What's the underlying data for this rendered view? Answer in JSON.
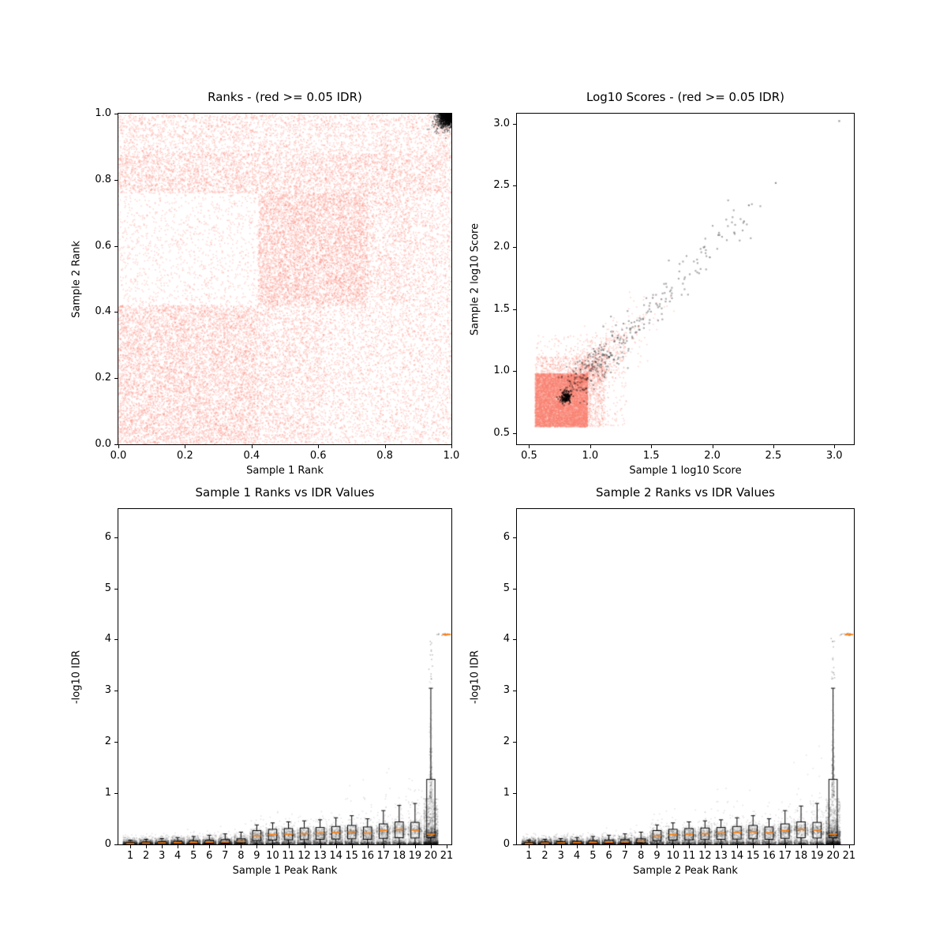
{
  "figure": {
    "background": "#ffffff"
  },
  "chart_data": [
    {
      "type": "scatter",
      "title": "Ranks - (red >= 0.05 IDR)",
      "xlabel": "Sample 1 Rank",
      "ylabel": "Sample 2 Rank",
      "xlim": [
        0,
        1
      ],
      "ylim": [
        0,
        1
      ],
      "xticks": {
        "values": [
          0,
          0.2,
          0.4,
          0.6,
          0.8,
          1.0
        ],
        "labels": [
          "0.0",
          "0.2",
          "0.4",
          "0.6",
          "0.8",
          "1.0"
        ]
      },
      "yticks": {
        "values": [
          0,
          0.2,
          0.4,
          0.6,
          0.8,
          1.0
        ],
        "labels": [
          "0.0",
          "0.2",
          "0.4",
          "0.6",
          "0.8",
          "1.0"
        ]
      },
      "colors": {
        "nonsignificant": "#FA8072",
        "significant": "#000000"
      },
      "blocks": [
        {
          "x0": 0.0,
          "x1": 1.0,
          "y0": 0.0,
          "y1": 1.0,
          "n": 1200
        },
        {
          "x0": 0.0,
          "x1": 0.42,
          "y0": 0.0,
          "y1": 0.42,
          "n": 7500
        },
        {
          "x0": 0.42,
          "x1": 0.62,
          "y0": 0.0,
          "y1": 0.42,
          "n": 2200
        },
        {
          "x0": 0.62,
          "x1": 0.88,
          "y0": 0.0,
          "y1": 0.42,
          "n": 1700
        },
        {
          "x0": 0.88,
          "x1": 1.0,
          "y0": 0.0,
          "y1": 0.42,
          "n": 800
        },
        {
          "x0": 0.0,
          "x1": 0.42,
          "y0": 0.42,
          "y1": 0.76,
          "n": 900
        },
        {
          "x0": 0.42,
          "x1": 0.75,
          "y0": 0.42,
          "y1": 0.76,
          "n": 6200
        },
        {
          "x0": 0.75,
          "x1": 0.88,
          "y0": 0.42,
          "y1": 0.76,
          "n": 1100
        },
        {
          "x0": 0.88,
          "x1": 1.0,
          "y0": 0.42,
          "y1": 0.76,
          "n": 700
        },
        {
          "x0": 0.0,
          "x1": 0.88,
          "y0": 0.76,
          "y1": 0.88,
          "n": 3800
        },
        {
          "x0": 0.88,
          "x1": 1.0,
          "y0": 0.76,
          "y1": 0.88,
          "n": 450
        },
        {
          "x0": 0.0,
          "x1": 0.42,
          "y0": 0.88,
          "y1": 1.0,
          "n": 1100
        },
        {
          "x0": 0.42,
          "x1": 0.75,
          "y0": 0.88,
          "y1": 1.0,
          "n": 800
        },
        {
          "x0": 0.75,
          "x1": 1.0,
          "y0": 0.88,
          "y1": 1.0,
          "n": 650
        }
      ],
      "black_cluster": {
        "corner_x": 1.0,
        "corner_y": 1.0,
        "sd": 0.02,
        "n": 1100
      }
    },
    {
      "type": "scatter",
      "title": "Log10 Scores - (red >= 0.05 IDR)",
      "xlabel": "Sample 1 log10 Score",
      "ylabel": "Sample 2 log10 Score",
      "xlim": [
        0.4,
        3.16
      ],
      "ylim": [
        0.41,
        3.08
      ],
      "xticks": {
        "values": [
          0.5,
          1.0,
          1.5,
          2.0,
          2.5,
          3.0
        ],
        "labels": [
          "0.5",
          "1.0",
          "1.5",
          "2.0",
          "2.5",
          "3.0"
        ]
      },
      "yticks": {
        "values": [
          0.5,
          1.0,
          1.5,
          2.0,
          2.5,
          3.0
        ],
        "labels": [
          "0.5",
          "1.0",
          "1.5",
          "2.0",
          "2.5",
          "3.0"
        ]
      },
      "colors": {
        "nonsignificant": "#FA8072",
        "significant": "#000000"
      },
      "blocks": [
        {
          "x0": 0.55,
          "x1": 0.98,
          "y0": 0.55,
          "y1": 0.98,
          "n": 9500
        },
        {
          "x0": 0.55,
          "x1": 1.12,
          "y0": 0.55,
          "y1": 1.12,
          "n": 1400
        },
        {
          "x0": 0.55,
          "x1": 1.3,
          "y0": 0.55,
          "y1": 1.3,
          "n": 450
        }
      ],
      "salmon_diag": {
        "t0": 0.9,
        "scale": 0.18,
        "sd": 0.09,
        "tmax": 1.6,
        "n": 700
      },
      "gray_diag": {
        "t0": 0.82,
        "scale": 0.5,
        "sdx": 0.05,
        "sdy": 0.07,
        "tmax": 2.35,
        "n": 360
      },
      "black_cluster": {
        "cx": 0.8,
        "cy": 0.79,
        "sd": 0.022,
        "n": 170
      },
      "outliers": [
        [
          3.04,
          3.02
        ],
        [
          2.52,
          2.52
        ],
        [
          2.3,
          2.34
        ],
        [
          2.26,
          2.21
        ],
        [
          2.18,
          2.12
        ],
        [
          2.05,
          2.1
        ],
        [
          1.98,
          1.92
        ],
        [
          1.93,
          2.0
        ]
      ]
    },
    {
      "type": "box-scatter",
      "title": "Sample 1 Ranks vs IDR Values",
      "xlabel": "Sample 1 Peak Rank",
      "ylabel": "-log10 IDR",
      "xlim": [
        0.25,
        21.3
      ],
      "ylim": [
        0,
        6.55
      ],
      "xticks": {
        "values": [
          1,
          2,
          3,
          4,
          5,
          6,
          7,
          8,
          9,
          10,
          11,
          12,
          13,
          14,
          15,
          16,
          17,
          18,
          19,
          20,
          21
        ],
        "labels": [
          "1",
          "2",
          "3",
          "4",
          "5",
          "6",
          "7",
          "8",
          "9",
          "10",
          "11",
          "12",
          "13",
          "14",
          "15",
          "16",
          "17",
          "18",
          "19",
          "20",
          "21"
        ]
      },
      "yticks": {
        "values": [
          0,
          1,
          2,
          3,
          4,
          5,
          6
        ],
        "labels": [
          "0",
          "1",
          "2",
          "3",
          "4",
          "5",
          "6"
        ]
      },
      "colors": {
        "points": "#000000",
        "box": "#000000",
        "median": "#ff7f0e"
      },
      "ranks": [
        {
          "rank": 1,
          "median": 0.02,
          "q1": 0.009,
          "q3": 0.038,
          "whisker_low": 0.001,
          "whisker_high": 0.085,
          "tail_scale": 0.03,
          "n": 640
        },
        {
          "rank": 2,
          "median": 0.024,
          "q1": 0.011,
          "q3": 0.045,
          "whisker_low": 0.001,
          "whisker_high": 0.1,
          "tail_scale": 0.034,
          "n": 640
        },
        {
          "rank": 3,
          "median": 0.028,
          "q1": 0.013,
          "q3": 0.053,
          "whisker_low": 0.001,
          "whisker_high": 0.115,
          "tail_scale": 0.038,
          "n": 640
        },
        {
          "rank": 4,
          "median": 0.033,
          "q1": 0.015,
          "q3": 0.062,
          "whisker_low": 0.001,
          "whisker_high": 0.135,
          "tail_scale": 0.043,
          "n": 640
        },
        {
          "rank": 5,
          "median": 0.038,
          "q1": 0.017,
          "q3": 0.072,
          "whisker_low": 0.001,
          "whisker_high": 0.155,
          "tail_scale": 0.048,
          "n": 640
        },
        {
          "rank": 6,
          "median": 0.044,
          "q1": 0.02,
          "q3": 0.083,
          "whisker_low": 0.001,
          "whisker_high": 0.18,
          "tail_scale": 0.054,
          "n": 640
        },
        {
          "rank": 7,
          "median": 0.05,
          "q1": 0.023,
          "q3": 0.095,
          "whisker_low": 0.001,
          "whisker_high": 0.205,
          "tail_scale": 0.06,
          "n": 640
        },
        {
          "rank": 8,
          "median": 0.058,
          "q1": 0.026,
          "q3": 0.11,
          "whisker_low": 0.001,
          "whisker_high": 0.24,
          "tail_scale": 0.068,
          "n": 640
        },
        {
          "rank": 9,
          "median": 0.17,
          "q1": 0.075,
          "q3": 0.27,
          "whisker_low": 0.002,
          "whisker_high": 0.38,
          "tail_scale": 0.1,
          "n": 640
        },
        {
          "rank": 10,
          "median": 0.19,
          "q1": 0.085,
          "q3": 0.295,
          "whisker_low": 0.002,
          "whisker_high": 0.42,
          "tail_scale": 0.115,
          "n": 640
        },
        {
          "rank": 11,
          "median": 0.2,
          "q1": 0.09,
          "q3": 0.31,
          "whisker_low": 0.002,
          "whisker_high": 0.44,
          "tail_scale": 0.125,
          "n": 640
        },
        {
          "rank": 12,
          "median": 0.21,
          "q1": 0.095,
          "q3": 0.32,
          "whisker_low": 0.002,
          "whisker_high": 0.46,
          "tail_scale": 0.135,
          "n": 640
        },
        {
          "rank": 13,
          "median": 0.22,
          "q1": 0.1,
          "q3": 0.33,
          "whisker_low": 0.002,
          "whisker_high": 0.48,
          "tail_scale": 0.145,
          "n": 640
        },
        {
          "rank": 14,
          "median": 0.23,
          "q1": 0.105,
          "q3": 0.35,
          "whisker_low": 0.002,
          "whisker_high": 0.52,
          "tail_scale": 0.155,
          "n": 640
        },
        {
          "rank": 15,
          "median": 0.245,
          "q1": 0.11,
          "q3": 0.37,
          "whisker_low": 0.002,
          "whisker_high": 0.56,
          "tail_scale": 0.165,
          "n": 640
        },
        {
          "rank": 16,
          "median": 0.22,
          "q1": 0.1,
          "q3": 0.34,
          "whisker_low": 0.002,
          "whisker_high": 0.5,
          "tail_scale": 0.175,
          "n": 640
        },
        {
          "rank": 17,
          "median": 0.27,
          "q1": 0.12,
          "q3": 0.4,
          "whisker_low": 0.002,
          "whisker_high": 0.66,
          "tail_scale": 0.2,
          "n": 640
        },
        {
          "rank": 18,
          "median": 0.29,
          "q1": 0.13,
          "q3": 0.44,
          "whisker_low": 0.002,
          "whisker_high": 0.76,
          "tail_scale": 0.24,
          "n": 640
        },
        {
          "rank": 19,
          "median": 0.28,
          "q1": 0.125,
          "q3": 0.43,
          "whisker_low": 0.002,
          "whisker_high": 0.8,
          "tail_scale": 0.3,
          "n": 640
        },
        {
          "rank": 20,
          "median": 0.2,
          "q1": 0.13,
          "q3": 1.27,
          "whisker_low": 0.002,
          "whisker_high": 3.05,
          "tail_scale": 0.52,
          "n": 2200
        }
      ],
      "capped_bin": {
        "rank": 21,
        "value": 4.1
      },
      "capped_points": {
        "x": 20.9,
        "sdx": 0.22,
        "y": 4.1,
        "sdy": 0.012,
        "n": 22
      },
      "spike": {
        "x": 20.0,
        "sdx": 0.05,
        "y0": 3.2,
        "y1": 4.05,
        "n": 14
      }
    },
    {
      "type": "box-scatter",
      "title": "Sample 2 Ranks vs IDR Values",
      "xlabel": "Sample 2 Peak Rank",
      "ylabel": "-log10 IDR",
      "xlim": [
        0.25,
        21.3
      ],
      "ylim": [
        0,
        6.55
      ],
      "xticks": {
        "values": [
          1,
          2,
          3,
          4,
          5,
          6,
          7,
          8,
          9,
          10,
          11,
          12,
          13,
          14,
          15,
          16,
          17,
          18,
          19,
          20,
          21
        ],
        "labels": [
          "1",
          "2",
          "3",
          "4",
          "5",
          "6",
          "7",
          "8",
          "9",
          "10",
          "11",
          "12",
          "13",
          "14",
          "15",
          "16",
          "17",
          "18",
          "19",
          "20",
          "21"
        ]
      },
      "yticks": {
        "values": [
          0,
          1,
          2,
          3,
          4,
          5,
          6
        ],
        "labels": [
          "0",
          "1",
          "2",
          "3",
          "4",
          "5",
          "6"
        ]
      },
      "colors": {
        "points": "#000000",
        "box": "#000000",
        "median": "#ff7f0e"
      },
      "ranks": [
        {
          "rank": 1,
          "median": 0.02,
          "q1": 0.009,
          "q3": 0.038,
          "whisker_low": 0.001,
          "whisker_high": 0.085,
          "tail_scale": 0.03,
          "n": 640
        },
        {
          "rank": 2,
          "median": 0.024,
          "q1": 0.011,
          "q3": 0.045,
          "whisker_low": 0.001,
          "whisker_high": 0.1,
          "tail_scale": 0.034,
          "n": 640
        },
        {
          "rank": 3,
          "median": 0.028,
          "q1": 0.013,
          "q3": 0.053,
          "whisker_low": 0.001,
          "whisker_high": 0.115,
          "tail_scale": 0.038,
          "n": 640
        },
        {
          "rank": 4,
          "median": 0.033,
          "q1": 0.015,
          "q3": 0.062,
          "whisker_low": 0.001,
          "whisker_high": 0.135,
          "tail_scale": 0.043,
          "n": 640
        },
        {
          "rank": 5,
          "median": 0.038,
          "q1": 0.017,
          "q3": 0.072,
          "whisker_low": 0.001,
          "whisker_high": 0.155,
          "tail_scale": 0.048,
          "n": 640
        },
        {
          "rank": 6,
          "median": 0.044,
          "q1": 0.02,
          "q3": 0.083,
          "whisker_low": 0.001,
          "whisker_high": 0.18,
          "tail_scale": 0.054,
          "n": 640
        },
        {
          "rank": 7,
          "median": 0.05,
          "q1": 0.023,
          "q3": 0.095,
          "whisker_low": 0.001,
          "whisker_high": 0.205,
          "tail_scale": 0.06,
          "n": 640
        },
        {
          "rank": 8,
          "median": 0.058,
          "q1": 0.026,
          "q3": 0.11,
          "whisker_low": 0.001,
          "whisker_high": 0.24,
          "tail_scale": 0.068,
          "n": 640
        },
        {
          "rank": 9,
          "median": 0.17,
          "q1": 0.075,
          "q3": 0.27,
          "whisker_low": 0.002,
          "whisker_high": 0.38,
          "tail_scale": 0.1,
          "n": 640
        },
        {
          "rank": 10,
          "median": 0.19,
          "q1": 0.085,
          "q3": 0.295,
          "whisker_low": 0.002,
          "whisker_high": 0.42,
          "tail_scale": 0.115,
          "n": 640
        },
        {
          "rank": 11,
          "median": 0.2,
          "q1": 0.09,
          "q3": 0.31,
          "whisker_low": 0.002,
          "whisker_high": 0.44,
          "tail_scale": 0.125,
          "n": 640
        },
        {
          "rank": 12,
          "median": 0.21,
          "q1": 0.095,
          "q3": 0.32,
          "whisker_low": 0.002,
          "whisker_high": 0.46,
          "tail_scale": 0.135,
          "n": 640
        },
        {
          "rank": 13,
          "median": 0.22,
          "q1": 0.1,
          "q3": 0.33,
          "whisker_low": 0.002,
          "whisker_high": 0.48,
          "tail_scale": 0.145,
          "n": 640
        },
        {
          "rank": 14,
          "median": 0.23,
          "q1": 0.105,
          "q3": 0.35,
          "whisker_low": 0.002,
          "whisker_high": 0.52,
          "tail_scale": 0.155,
          "n": 640
        },
        {
          "rank": 15,
          "median": 0.245,
          "q1": 0.11,
          "q3": 0.37,
          "whisker_low": 0.002,
          "whisker_high": 0.56,
          "tail_scale": 0.165,
          "n": 640
        },
        {
          "rank": 16,
          "median": 0.225,
          "q1": 0.1,
          "q3": 0.34,
          "whisker_low": 0.002,
          "whisker_high": 0.5,
          "tail_scale": 0.175,
          "n": 640
        },
        {
          "rank": 17,
          "median": 0.27,
          "q1": 0.12,
          "q3": 0.4,
          "whisker_low": 0.002,
          "whisker_high": 0.66,
          "tail_scale": 0.2,
          "n": 640
        },
        {
          "rank": 18,
          "median": 0.29,
          "q1": 0.13,
          "q3": 0.44,
          "whisker_low": 0.002,
          "whisker_high": 0.75,
          "tail_scale": 0.24,
          "n": 640
        },
        {
          "rank": 19,
          "median": 0.28,
          "q1": 0.125,
          "q3": 0.43,
          "whisker_low": 0.002,
          "whisker_high": 0.8,
          "tail_scale": 0.3,
          "n": 640
        },
        {
          "rank": 20,
          "median": 0.2,
          "q1": 0.13,
          "q3": 1.27,
          "whisker_low": 0.002,
          "whisker_high": 3.05,
          "tail_scale": 0.52,
          "n": 2200
        }
      ],
      "capped_bin": {
        "rank": 21,
        "value": 4.1
      },
      "capped_points": {
        "x": 20.9,
        "sdx": 0.22,
        "y": 4.1,
        "sdy": 0.012,
        "n": 22
      },
      "spike": {
        "x": 20.0,
        "sdx": 0.05,
        "y0": 3.2,
        "y1": 4.05,
        "n": 14
      }
    }
  ]
}
